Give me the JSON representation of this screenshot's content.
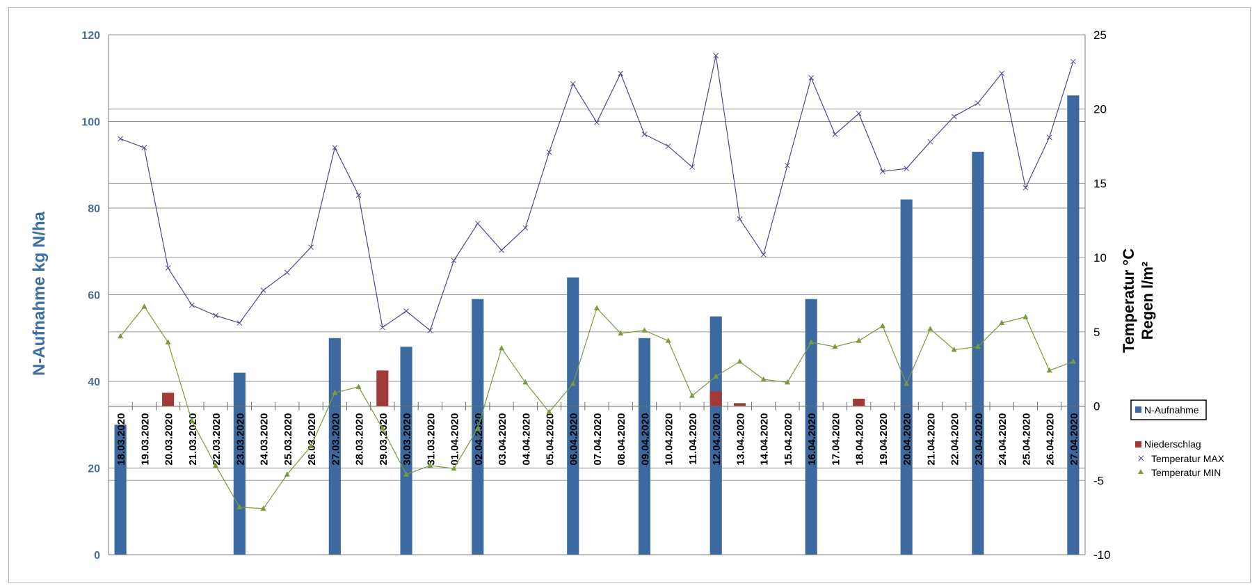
{
  "chart_data": {
    "type": "bar",
    "ylabel": "N-Aufnahme kg N/ha",
    "y2label_lines": [
      "Temperatur °C",
      "Regen l/m²"
    ],
    "ylim": [
      0,
      120
    ],
    "y2lim": [
      -10,
      25
    ],
    "yticks": [
      "0",
      "20",
      "40",
      "60",
      "80",
      "100",
      "120"
    ],
    "y2ticks": [
      "-10",
      "-5",
      "0",
      "5",
      "10",
      "15",
      "20",
      "25"
    ],
    "grid": true,
    "legend_position": "right",
    "categories": [
      "18.03.2020",
      "19.03.2020",
      "20.03.2020",
      "21.03.2020",
      "22.03.2020",
      "23.03.2020",
      "24.03.2020",
      "25.03.2020",
      "26.03.2020",
      "27.03.2020",
      "28.03.2020",
      "29.03.2020",
      "30.03.2020",
      "31.03.2020",
      "01.04.2020",
      "02.04.2020",
      "03.04.2020",
      "04.04.2020",
      "05.04.2020",
      "06.04.2020",
      "07.04.2020",
      "08.04.2020",
      "09.04.2020",
      "10.04.2020",
      "11.04.2020",
      "12.04.2020",
      "13.04.2020",
      "14.04.2020",
      "15.04.2020",
      "16.04.2020",
      "17.04.2020",
      "18.04.2020",
      "19.04.2020",
      "20.04.2020",
      "21.04.2020",
      "22.04.2020",
      "23.04.2020",
      "24.04.2020",
      "25.04.2020",
      "26.04.2020",
      "27.04.2020"
    ],
    "series": [
      {
        "name": "N-Aufnahme",
        "kind": "bar",
        "axis": "left",
        "color": "#3c6aa0",
        "values": [
          30,
          null,
          null,
          null,
          null,
          42,
          null,
          null,
          null,
          50,
          null,
          null,
          48,
          null,
          null,
          59,
          null,
          null,
          null,
          64,
          null,
          null,
          50,
          null,
          null,
          55,
          null,
          null,
          null,
          59,
          null,
          null,
          null,
          82,
          null,
          null,
          93,
          null,
          null,
          null,
          106
        ]
      },
      {
        "name": "Niederschlag",
        "kind": "bar",
        "axis": "right",
        "color": "#a33a3a",
        "values": [
          null,
          null,
          0.9,
          null,
          null,
          null,
          null,
          null,
          null,
          null,
          null,
          2.4,
          null,
          null,
          null,
          null,
          null,
          null,
          null,
          null,
          null,
          null,
          null,
          null,
          null,
          1.0,
          0.2,
          null,
          null,
          null,
          null,
          0.5,
          null,
          null,
          null,
          null,
          null,
          null,
          null,
          null,
          null
        ]
      },
      {
        "name": "Temperatur MAX",
        "kind": "line",
        "axis": "right",
        "color": "#4b4a8c",
        "values": [
          18.0,
          17.4,
          9.3,
          6.8,
          6.1,
          5.6,
          7.8,
          9.0,
          10.7,
          17.4,
          14.2,
          5.3,
          6.4,
          5.1,
          9.8,
          12.3,
          10.5,
          12.0,
          17.1,
          21.7,
          19.1,
          22.4,
          18.3,
          17.5,
          16.1,
          23.6,
          12.6,
          10.2,
          16.2,
          22.1,
          18.3,
          19.7,
          15.8,
          16.0,
          17.8,
          19.5,
          20.4,
          22.4,
          14.7,
          18.1,
          23.2
        ]
      },
      {
        "name": "Temperatur MIN",
        "kind": "line",
        "axis": "right",
        "color": "#7a9a3c",
        "values": [
          4.7,
          6.7,
          4.3,
          -1.0,
          -4.0,
          -6.8,
          -6.9,
          -4.6,
          -2.7,
          0.9,
          1.3,
          -1.5,
          -4.6,
          -4.0,
          -4.2,
          -1.5,
          3.9,
          1.6,
          -0.4,
          1.5,
          6.6,
          4.9,
          5.1,
          4.4,
          0.7,
          2.0,
          3.0,
          1.8,
          1.6,
          4.3,
          4.0,
          4.4,
          5.4,
          1.5,
          5.2,
          3.8,
          4.0,
          5.6,
          6.0,
          2.4,
          3.0
        ]
      }
    ]
  }
}
